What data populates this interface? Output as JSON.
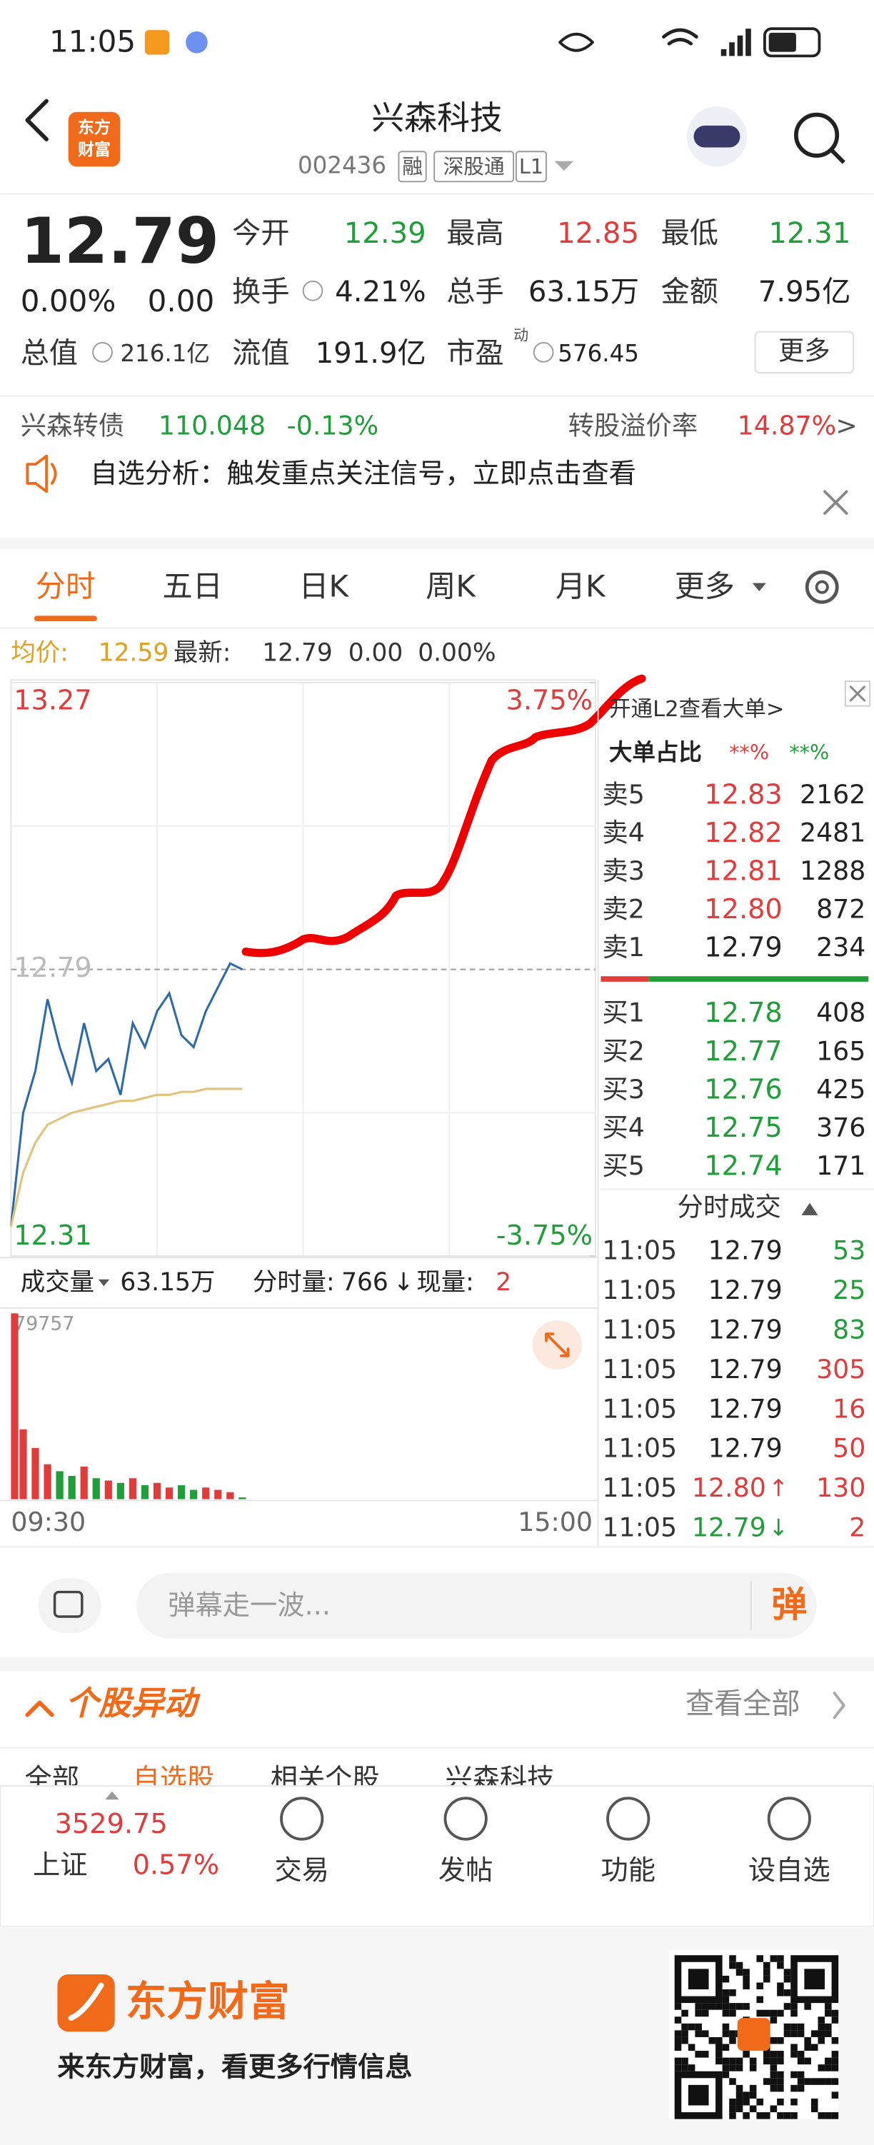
{
  "status_bar": {
    "time": "11:05"
  },
  "header": {
    "title": "兴森科技",
    "code": "002436",
    "tags": [
      "融",
      "深股通",
      "L1"
    ],
    "logo": [
      "东方",
      "财富"
    ]
  },
  "quote": {
    "price": "12.79",
    "change_pct": "0.00%",
    "change": "0.00",
    "total_value": {
      "label": "总值",
      "value": "216.1亿"
    },
    "stats": [
      [
        {
          "label": "今开",
          "value": "12.39",
          "color": "#1f9e3a"
        },
        {
          "label": "最高",
          "value": "12.85",
          "color": "#e23b3b"
        },
        {
          "label": "最低",
          "value": "12.31",
          "color": "#1f9e3a"
        }
      ],
      [
        {
          "label": "换手",
          "value": "4.21%",
          "color": "#222222"
        },
        {
          "label": "总手",
          "value": "63.15万",
          "color": "#222222"
        },
        {
          "label": "金额",
          "value": "7.95亿",
          "color": "#222222"
        }
      ],
      [
        {
          "label": "流值",
          "value": "191.9亿",
          "color": "#222222"
        },
        {
          "label": "市盈",
          "sup": "动",
          "value": "576.45",
          "color": "#222222"
        }
      ]
    ],
    "more": "更多"
  },
  "bond": {
    "name": "兴森转债",
    "price": "110.048",
    "change": "-0.13%",
    "premium_label": "转股溢价率",
    "premium": "14.87%",
    "arrow": ">"
  },
  "banner": "自选分析：触发重点关注信号，立即点击查看",
  "tabs": [
    "分时",
    "五日",
    "日K",
    "周K",
    "月K",
    "更多"
  ],
  "info_bar": {
    "avg_label": "均价:",
    "avg": "12.59",
    "latest_label": "最新:",
    "latest": "12.79",
    "change": "0.00",
    "change_pct": "0.00%"
  },
  "chart_data": [
    {
      "type": "line",
      "categories": [
        null,
        null,
        null,
        null,
        null,
        null,
        null,
        null,
        null,
        null,
        null,
        null,
        null,
        null,
        null,
        null,
        null,
        null,
        null,
        null,
        null,
        null,
        null,
        null,
        null,
        null,
        null,
        null,
        null,
        null,
        null,
        null,
        null,
        null,
        null,
        null,
        null,
        null,
        null,
        null,
        null,
        null,
        null,
        null,
        null,
        null,
        null,
        null,
        null
      ],
      "series": [
        {
          "color": "#2f6aa8",
          "values": [
            12.36,
            12.55,
            12.62,
            12.74,
            12.66,
            12.6,
            12.7,
            12.62,
            12.64,
            12.58,
            12.7,
            12.66,
            12.72,
            12.75,
            12.68,
            12.66,
            12.72,
            12.76,
            12.8,
            12.79,
            null,
            null,
            null,
            null,
            null,
            null,
            null,
            null,
            null,
            null,
            null,
            null,
            null,
            null,
            null,
            null,
            null,
            null,
            null,
            null,
            null,
            null,
            null,
            null,
            null,
            null,
            null,
            null,
            null
          ]
        },
        {
          "color": "#e2c27a",
          "values": [
            12.36,
            12.45,
            12.5,
            12.53,
            12.54,
            12.55,
            12.555,
            12.56,
            12.565,
            12.57,
            12.57,
            12.575,
            12.58,
            12.58,
            12.585,
            12.585,
            12.59,
            12.59,
            12.59,
            12.59,
            null,
            null,
            null,
            null,
            null,
            null,
            null,
            null,
            null,
            null,
            null,
            null,
            null,
            null,
            null,
            null,
            null,
            null,
            null,
            null,
            null,
            null,
            null,
            null,
            null,
            null,
            null,
            null,
            null
          ]
        }
      ],
      "ylim": [
        12.31,
        13.27
      ],
      "yticks": [
        13.27,
        12.79,
        12.31
      ],
      "y2lim": [
        -3.75,
        3.75
      ],
      "y2ticks": [
        {
          "value": 3.75,
          "label": "3.75%"
        },
        {
          "value": -3.75,
          "label": "-3.75%"
        }
      ],
      "grid": true
    },
    {
      "type": "bar",
      "categories": [
        "09:30",
        null,
        null,
        null,
        null,
        null,
        null,
        null,
        null,
        null,
        null,
        null,
        null,
        null,
        null,
        null,
        null,
        null,
        null,
        null,
        null,
        null,
        null,
        null,
        null,
        null,
        null,
        null,
        null,
        null,
        null,
        null,
        null,
        null,
        null,
        null,
        null,
        null,
        null,
        null,
        null,
        null,
        null,
        null,
        null,
        null,
        null,
        null,
        "15:00"
      ],
      "values": [
        79757,
        30000,
        22000,
        15000,
        12000,
        10000,
        14000,
        9000,
        8000,
        7000,
        9000,
        6000,
        7000,
        5000,
        6000,
        4000,
        5000,
        4000,
        3000,
        766,
        null,
        null,
        null,
        null,
        null,
        null,
        null,
        null,
        null,
        null,
        null,
        null,
        null,
        null,
        null,
        null,
        null,
        null,
        null,
        null,
        null,
        null,
        null,
        null,
        null,
        null,
        null,
        null,
        null
      ],
      "colors": [
        "#e23b3b",
        "#1f9e3a"
      ],
      "ylim": [
        0,
        79757
      ],
      "yticks": [
        79757
      ]
    }
  ],
  "volume_bar": {
    "label": "成交量",
    "total": "63.15万",
    "tick_label": "分时量:",
    "tick": "766",
    "tick_arrow": "↓",
    "now_label": "现量:",
    "now": "2"
  },
  "order_book": {
    "l2": "开通L2查看大单>",
    "big_ratio": {
      "label": "大单占比",
      "sell": "**%",
      "buy": "**%"
    },
    "asks": [
      {
        "label": "卖5",
        "price": "12.83",
        "volume": "2162",
        "color": "#e23b3b"
      },
      {
        "label": "卖4",
        "price": "12.82",
        "volume": "2481",
        "color": "#e23b3b"
      },
      {
        "label": "卖3",
        "price": "12.81",
        "volume": "1288",
        "color": "#e23b3b"
      },
      {
        "label": "卖2",
        "price": "12.80",
        "volume": "872",
        "color": "#e23b3b"
      },
      {
        "label": "卖1",
        "price": "12.79",
        "volume": "234",
        "color": "#222222"
      }
    ],
    "bids": [
      {
        "label": "买1",
        "price": "12.78",
        "volume": "408",
        "color": "#1f9e3a"
      },
      {
        "label": "买2",
        "price": "12.77",
        "volume": "165",
        "color": "#1f9e3a"
      },
      {
        "label": "买3",
        "price": "12.76",
        "volume": "425",
        "color": "#1f9e3a"
      },
      {
        "label": "买4",
        "price": "12.75",
        "volume": "376",
        "color": "#1f9e3a"
      },
      {
        "label": "买5",
        "price": "12.74",
        "volume": "171",
        "color": "#1f9e3a"
      }
    ]
  },
  "trades": {
    "title": "分时成交",
    "rows": [
      {
        "time": "11:05",
        "price": "12.79",
        "volume": "53",
        "color": "#1f9e3a"
      },
      {
        "time": "11:05",
        "price": "12.79",
        "volume": "25",
        "color": "#1f9e3a"
      },
      {
        "time": "11:05",
        "price": "12.79",
        "volume": "83",
        "color": "#1f9e3a"
      },
      {
        "time": "11:05",
        "price": "12.79",
        "volume": "305",
        "color": "#e23b3b"
      },
      {
        "time": "11:05",
        "price": "12.79",
        "volume": "16",
        "color": "#e23b3b"
      },
      {
        "time": "11:05",
        "price": "12.79",
        "volume": "50",
        "color": "#e23b3b"
      },
      {
        "time": "11:05",
        "price": "12.80",
        "arrow": "↑",
        "arrow_color": "#e23b3b",
        "volume": "130",
        "color": "#e23b3b"
      },
      {
        "time": "11:05",
        "price": "12.79",
        "arrow": "↓",
        "arrow_color": "#1f9e3a",
        "volume": "2",
        "color": "#e23b3b"
      }
    ]
  },
  "comment": {
    "placeholder": "弹幕走一波...",
    "button": "弹"
  },
  "movement": {
    "title": "个股异动",
    "link": "查看全部",
    "tabs": [
      "全部",
      "自选股",
      "相关个股",
      "兴森科技"
    ]
  },
  "bottom_nav": {
    "index_value": "3529.75",
    "index_name": "上证",
    "index_change": "0.57%",
    "items": [
      "交易",
      "发帖",
      "功能",
      "设自选"
    ]
  },
  "footer": {
    "brand": "东方财富",
    "slogan": "来东方财富，看更多行情信息"
  }
}
